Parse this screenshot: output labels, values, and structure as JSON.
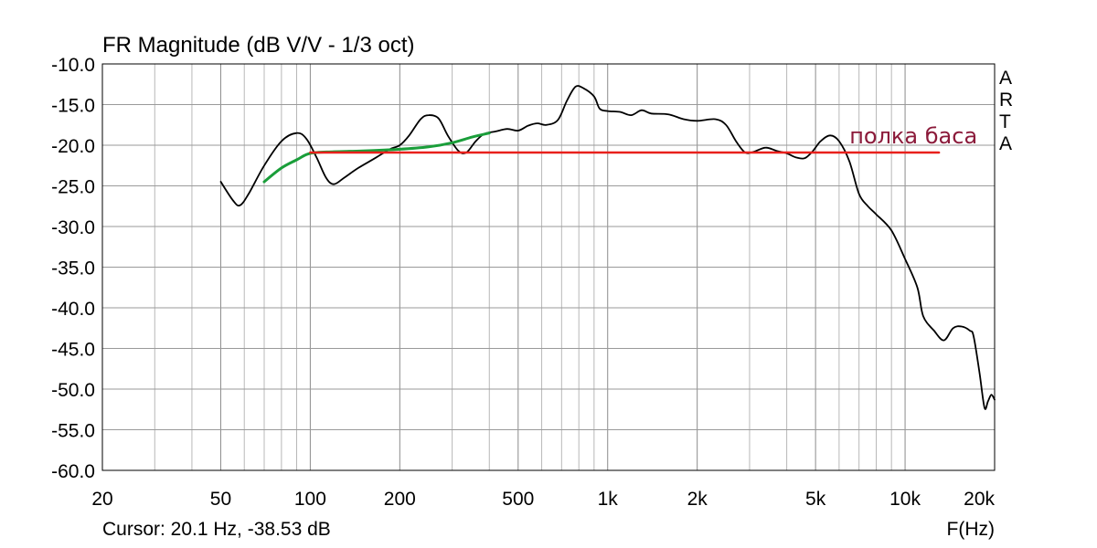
{
  "chart_data": {
    "type": "line",
    "title": "FR Magnitude (dB V/V - 1/3 oct)",
    "x_scale": "log",
    "xlim": [
      20,
      20000
    ],
    "ylim": [
      -60,
      -10
    ],
    "grid": true,
    "x_ticks": [
      {
        "value": 20,
        "label": "20"
      },
      {
        "value": 50,
        "label": "50"
      },
      {
        "value": 100,
        "label": "100"
      },
      {
        "value": 200,
        "label": "200"
      },
      {
        "value": 500,
        "label": "500"
      },
      {
        "value": 1000,
        "label": "1k"
      },
      {
        "value": 2000,
        "label": "2k"
      },
      {
        "value": 5000,
        "label": "5k"
      },
      {
        "value": 10000,
        "label": "10k"
      },
      {
        "value": 20000,
        "label": "20k"
      }
    ],
    "y_ticks": [
      {
        "value": -10,
        "label": "-10.0"
      },
      {
        "value": -15,
        "label": "-15.0"
      },
      {
        "value": -20,
        "label": "-20.0"
      },
      {
        "value": -25,
        "label": "-25.0"
      },
      {
        "value": -30,
        "label": "-30.0"
      },
      {
        "value": -35,
        "label": "-35.0"
      },
      {
        "value": -40,
        "label": "-40.0"
      },
      {
        "value": -45,
        "label": "-45.0"
      },
      {
        "value": -50,
        "label": "-50.0"
      },
      {
        "value": -55,
        "label": "-55.0"
      },
      {
        "value": -60,
        "label": "-60.0"
      }
    ],
    "xlabel": "F(Hz)",
    "cursor_text": "Cursor: 20.1 Hz, -38.53 dB",
    "logo_letters": [
      "A",
      "R",
      "T",
      "A"
    ],
    "series": [
      {
        "color": "#000000",
        "points": [
          [
            50,
            -24.5
          ],
          [
            55,
            -26.8
          ],
          [
            58,
            -27.4
          ],
          [
            62,
            -26.0
          ],
          [
            70,
            -22.5
          ],
          [
            80,
            -19.5
          ],
          [
            90,
            -18.5
          ],
          [
            97,
            -19.2
          ],
          [
            105,
            -21.5
          ],
          [
            113,
            -24.0
          ],
          [
            120,
            -24.8
          ],
          [
            130,
            -24.0
          ],
          [
            145,
            -22.8
          ],
          [
            165,
            -21.6
          ],
          [
            185,
            -20.5
          ],
          [
            200,
            -20.0
          ],
          [
            215,
            -18.8
          ],
          [
            235,
            -16.8
          ],
          [
            250,
            -16.3
          ],
          [
            270,
            -16.7
          ],
          [
            290,
            -18.8
          ],
          [
            315,
            -20.7
          ],
          [
            335,
            -20.9
          ],
          [
            360,
            -19.5
          ],
          [
            385,
            -18.6
          ],
          [
            420,
            -18.3
          ],
          [
            460,
            -18.0
          ],
          [
            500,
            -18.2
          ],
          [
            540,
            -17.6
          ],
          [
            580,
            -17.3
          ],
          [
            620,
            -17.5
          ],
          [
            680,
            -16.9
          ],
          [
            730,
            -14.5
          ],
          [
            780,
            -12.8
          ],
          [
            830,
            -13.0
          ],
          [
            900,
            -14.0
          ],
          [
            940,
            -15.5
          ],
          [
            1000,
            -15.8
          ],
          [
            1100,
            -15.9
          ],
          [
            1200,
            -16.3
          ],
          [
            1300,
            -15.7
          ],
          [
            1400,
            -16.1
          ],
          [
            1600,
            -16.2
          ],
          [
            1800,
            -16.8
          ],
          [
            2000,
            -17.0
          ],
          [
            2300,
            -16.8
          ],
          [
            2500,
            -17.5
          ],
          [
            2700,
            -19.5
          ],
          [
            2900,
            -20.9
          ],
          [
            3100,
            -20.8
          ],
          [
            3400,
            -20.3
          ],
          [
            3700,
            -20.7
          ],
          [
            4000,
            -21.0
          ],
          [
            4300,
            -21.5
          ],
          [
            4600,
            -21.6
          ],
          [
            4900,
            -20.7
          ],
          [
            5200,
            -19.5
          ],
          [
            5600,
            -18.8
          ],
          [
            6000,
            -19.5
          ],
          [
            6500,
            -22.0
          ],
          [
            7000,
            -26.0
          ],
          [
            7500,
            -27.5
          ],
          [
            8000,
            -28.5
          ],
          [
            9000,
            -30.5
          ],
          [
            10000,
            -34.0
          ],
          [
            11000,
            -37.5
          ],
          [
            11500,
            -41.0
          ],
          [
            12500,
            -42.8
          ],
          [
            13500,
            -44.0
          ],
          [
            14500,
            -42.5
          ],
          [
            15500,
            -42.3
          ],
          [
            16500,
            -42.8
          ],
          [
            17000,
            -43.5
          ],
          [
            17800,
            -48.0
          ],
          [
            18500,
            -52.3
          ],
          [
            19000,
            -51.5
          ],
          [
            19500,
            -50.7
          ],
          [
            20000,
            -51.3
          ]
        ]
      },
      {
        "color": "#1a9e3a",
        "points": [
          [
            70,
            -24.5
          ],
          [
            80,
            -22.8
          ],
          [
            90,
            -21.8
          ],
          [
            100,
            -21.0
          ],
          [
            120,
            -20.8
          ],
          [
            150,
            -20.7
          ],
          [
            200,
            -20.5
          ],
          [
            250,
            -20.2
          ],
          [
            300,
            -19.7
          ],
          [
            350,
            -19.0
          ],
          [
            400,
            -18.5
          ]
        ]
      },
      {
        "color": "#e8201c",
        "points": [
          [
            100,
            -20.9
          ],
          [
            13000,
            -20.9
          ]
        ]
      }
    ],
    "annotations": [
      {
        "text": "полка баса",
        "color": "#8b1a3a",
        "x": 6500,
        "y": -19.8
      }
    ]
  }
}
